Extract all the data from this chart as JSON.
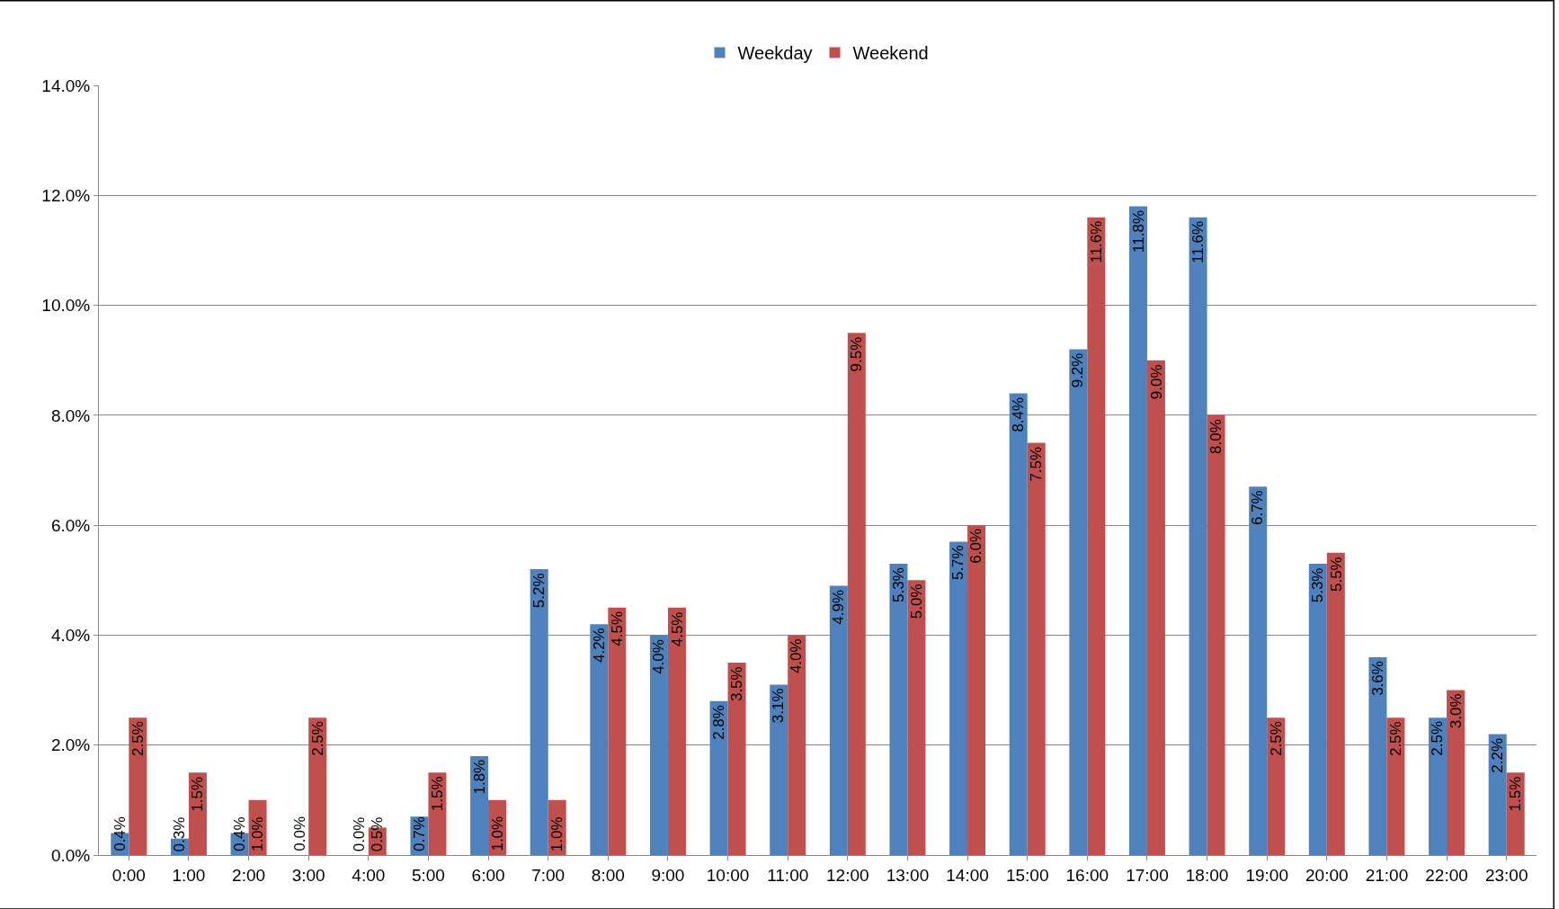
{
  "chart_data": {
    "type": "bar",
    "categories": [
      "0:00",
      "1:00",
      "2:00",
      "3:00",
      "4:00",
      "5:00",
      "6:00",
      "7:00",
      "8:00",
      "9:00",
      "10:00",
      "11:00",
      "12:00",
      "13:00",
      "14:00",
      "15:00",
      "16:00",
      "17:00",
      "18:00",
      "19:00",
      "20:00",
      "21:00",
      "22:00",
      "23:00"
    ],
    "series": [
      {
        "name": "Weekday",
        "color": "#4f81bd",
        "values": [
          0.4,
          0.3,
          0.4,
          0.0,
          0.0,
          0.7,
          1.8,
          5.2,
          4.2,
          4.0,
          2.8,
          3.1,
          4.9,
          5.3,
          5.7,
          8.4,
          9.2,
          11.8,
          11.6,
          6.7,
          5.3,
          3.6,
          2.5,
          2.2
        ],
        "value_labels": [
          "0.4%",
          "0.3%",
          "0.4%",
          "0.0%",
          "0.0%",
          "0.7%",
          "1.8%",
          "5.2%",
          "4.2%",
          "4.0%",
          "2.8%",
          "3.1%",
          "4.9%",
          "5.3%",
          "5.7%",
          "8.4%",
          "9.2%",
          "11.8%",
          "11.6%",
          "6.7%",
          "5.3%",
          "3.6%",
          "2.5%",
          "2.2%"
        ]
      },
      {
        "name": "Weekend",
        "color": "#c0504d",
        "values": [
          2.5,
          1.5,
          1.0,
          2.5,
          0.5,
          1.5,
          1.0,
          1.0,
          4.5,
          4.5,
          3.5,
          4.0,
          9.5,
          5.0,
          6.0,
          7.5,
          11.6,
          9.0,
          8.0,
          2.5,
          5.5,
          2.5,
          3.0,
          1.5
        ],
        "value_labels": [
          "2.5%",
          "1.5%",
          "1.0%",
          "2.5%",
          "0.5%",
          "1.5%",
          "1.0%",
          "1.0%",
          "4.5%",
          "4.5%",
          "3.5%",
          "4.0%",
          "9.5%",
          "5.0%",
          "6.0%",
          "7.5%",
          "11.6%",
          "9.0%",
          "8.0%",
          "2.5%",
          "5.5%",
          "2.5%",
          "3.0%",
          "1.5%"
        ]
      }
    ],
    "ylim": [
      0,
      14
    ],
    "yticks": [
      {
        "value": 0,
        "label": "0.0%"
      },
      {
        "value": 2,
        "label": "2.0%"
      },
      {
        "value": 4,
        "label": "4.0%"
      },
      {
        "value": 6,
        "label": "6.0%"
      },
      {
        "value": 8,
        "label": "8.0%"
      },
      {
        "value": 10,
        "label": "10.0%"
      },
      {
        "value": 12,
        "label": "12.0%"
      },
      {
        "value": 14,
        "label": "14.0%"
      }
    ],
    "grid": "y",
    "legend": "top"
  }
}
